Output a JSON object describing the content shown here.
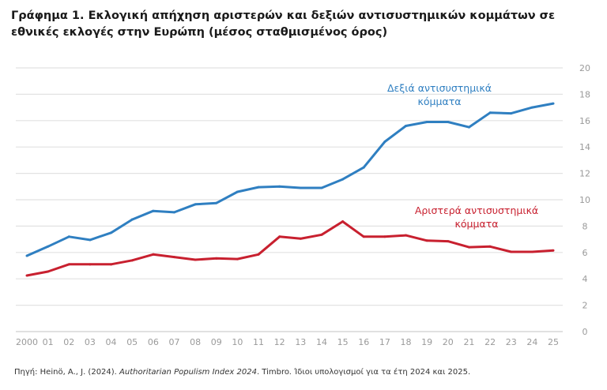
{
  "title": "Γράφημα 1. Εκλογική απήχηση αριστερών και δεξιών αντισυστημικών κομμάτων σε εθνικές εκλογές στην Ευρώπη (μέσος σταθμισμένος όρος)",
  "source": {
    "prefix": "Πηγή: Heinö, A., J. (2024). ",
    "italic": "Authoritarian Populism Index 2024",
    "suffix": ". Timbro. Ίδιοι υπολογισμοί για τα έτη 2024 και 2025."
  },
  "chart_data": {
    "type": "line",
    "x": [
      "2000",
      "01",
      "02",
      "03",
      "04",
      "05",
      "06",
      "07",
      "08",
      "09",
      "10",
      "11",
      "12",
      "13",
      "14",
      "15",
      "16",
      "17",
      "18",
      "19",
      "20",
      "21",
      "22",
      "23",
      "24",
      "25"
    ],
    "ylim": [
      0,
      20
    ],
    "yticks": [
      0,
      2,
      4,
      6,
      8,
      10,
      12,
      14,
      16,
      18,
      20
    ],
    "y_axis_side": "right",
    "grid": true,
    "series": [
      {
        "name": "Δεξιά αντισυστημικά κόμματα",
        "label_lines": [
          "Δεξιά αντισυστημικά",
          "κόμματα"
        ],
        "color": "#2f7fc1",
        "values": [
          5.75,
          6.45,
          7.2,
          6.95,
          7.5,
          8.5,
          9.15,
          9.05,
          9.65,
          9.75,
          10.6,
          10.95,
          11.0,
          10.9,
          10.9,
          11.55,
          12.45,
          14.4,
          15.6,
          15.9,
          15.9,
          15.5,
          16.6,
          16.55,
          17.0,
          17.3
        ]
      },
      {
        "name": "Αριστερά αντισυστημικά κόμματα",
        "label_lines": [
          "Αριστερά αντισυστημικά",
          "κόμματα"
        ],
        "color": "#c8202f",
        "values": [
          4.25,
          4.55,
          5.1,
          5.1,
          5.1,
          5.4,
          5.85,
          5.65,
          5.45,
          5.55,
          5.5,
          5.85,
          7.2,
          7.05,
          7.35,
          8.35,
          7.2,
          7.2,
          7.3,
          6.9,
          6.85,
          6.4,
          6.45,
          6.05,
          6.05,
          6.15
        ]
      }
    ]
  }
}
